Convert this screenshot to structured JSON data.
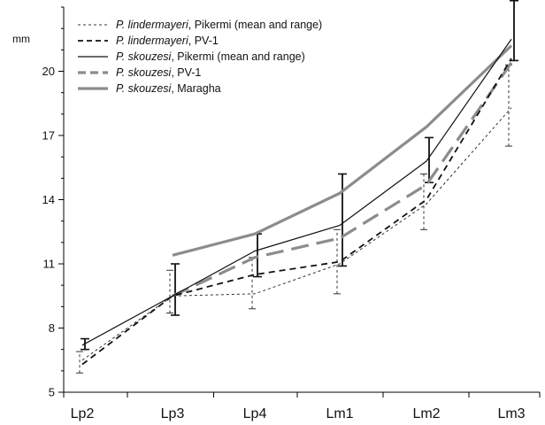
{
  "chart_data": {
    "type": "line",
    "unit_label": "mm",
    "categories": [
      "Lp2",
      "Lp3",
      "Lp4",
      "Lm1",
      "Lm2",
      "Lm3"
    ],
    "ylim": [
      5,
      23
    ],
    "yticks": [
      5,
      8,
      11,
      14,
      17,
      20
    ],
    "grid": false,
    "legend_placement": "top-left",
    "series": [
      {
        "name_italic": "P. lindermayeri",
        "name_rest": ", Pikermi (mean and range)",
        "color": "#333333",
        "style": "dotted-thin",
        "values": [
          6.5,
          9.5,
          9.6,
          11.0,
          13.8,
          18.3
        ],
        "ranges": [
          [
            5.9,
            6.9
          ],
          [
            8.7,
            10.7
          ],
          [
            8.9,
            11.3
          ],
          [
            9.6,
            12.6
          ],
          [
            12.6,
            15.2
          ],
          [
            16.5,
            20.3
          ]
        ]
      },
      {
        "name_italic": "P. lindermayeri",
        "name_rest": ", PV-1",
        "color": "#111111",
        "style": "dashed",
        "values": [
          6.3,
          9.5,
          10.5,
          11.1,
          14.0,
          20.6
        ]
      },
      {
        "name_italic": "P. skouzesi",
        "name_rest": ", Pikermi (mean and range)",
        "color": "#111111",
        "style": "solid-thin",
        "values": [
          7.2,
          9.5,
          11.6,
          12.8,
          15.8,
          21.5
        ],
        "ranges": [
          [
            7.0,
            7.5
          ],
          [
            8.6,
            11.0
          ],
          [
            10.4,
            12.4
          ],
          [
            10.9,
            15.2
          ],
          [
            14.8,
            16.9
          ],
          [
            20.5,
            23.3
          ]
        ]
      },
      {
        "name_italic": "P. skouzesi",
        "name_rest": ", PV-1",
        "color": "#8c8c8c",
        "style": "dashed-thick",
        "values": [
          null,
          9.5,
          11.3,
          12.2,
          14.7,
          20.4
        ]
      },
      {
        "name_italic": "P. skouzesi",
        "name_rest": ", Maragha",
        "color": "#8c8c8c",
        "style": "solid-thick",
        "values": [
          null,
          11.4,
          12.4,
          14.3,
          17.4,
          21.2
        ]
      }
    ]
  }
}
